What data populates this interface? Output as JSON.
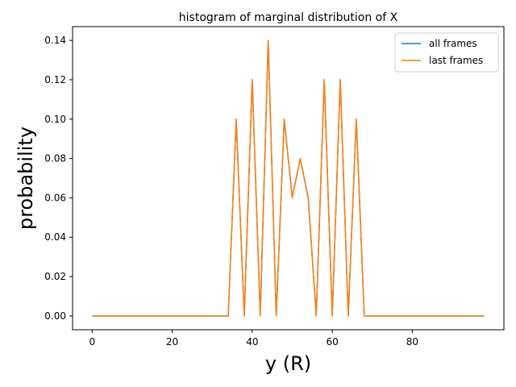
{
  "chart_data": {
    "type": "line",
    "title": "histogram of marginal distribution of X",
    "xlabel": "y (R)",
    "ylabel": "probability",
    "xlim": [
      -4.9,
      102.9
    ],
    "ylim": [
      -0.007,
      0.147
    ],
    "xticks": [
      0,
      20,
      40,
      60,
      80
    ],
    "yticks": [
      0.0,
      0.02,
      0.04,
      0.06,
      0.08,
      0.1,
      0.12,
      0.14
    ],
    "ytick_labels": [
      "0.00",
      "0.02",
      "0.04",
      "0.06",
      "0.08",
      "0.10",
      "0.12",
      "0.14"
    ],
    "grid": false,
    "legend_position": "top-right",
    "x": [
      0,
      2,
      4,
      6,
      8,
      10,
      12,
      14,
      16,
      18,
      20,
      22,
      24,
      26,
      28,
      30,
      32,
      34,
      36,
      38,
      40,
      42,
      44,
      46,
      48,
      50,
      52,
      54,
      56,
      58,
      60,
      62,
      64,
      66,
      68,
      70,
      72,
      74,
      76,
      78,
      80,
      82,
      84,
      86,
      88,
      90,
      92,
      94,
      96,
      98
    ],
    "series": [
      {
        "name": "all frames",
        "color": "#1f77b4",
        "values": [
          0,
          0,
          0,
          0,
          0,
          0,
          0,
          0,
          0,
          0,
          0,
          0,
          0,
          0,
          0,
          0,
          0,
          0,
          0.1,
          0,
          0.12,
          0,
          0.14,
          0,
          0.1,
          0.06,
          0.08,
          0.06,
          0,
          0.12,
          0,
          0.12,
          0,
          0.1,
          0,
          0,
          0,
          0,
          0,
          0,
          0,
          0,
          0,
          0,
          0,
          0,
          0,
          0,
          0,
          0
        ]
      },
      {
        "name": "last frames",
        "color": "#ff7f0e",
        "values": [
          0,
          0,
          0,
          0,
          0,
          0,
          0,
          0,
          0,
          0,
          0,
          0,
          0,
          0,
          0,
          0,
          0,
          0,
          0.1,
          0,
          0.12,
          0,
          0.14,
          0,
          0.1,
          0.06,
          0.08,
          0.06,
          0,
          0.12,
          0,
          0.12,
          0,
          0.1,
          0,
          0,
          0,
          0,
          0,
          0,
          0,
          0,
          0,
          0,
          0,
          0,
          0,
          0,
          0,
          0
        ]
      }
    ]
  }
}
